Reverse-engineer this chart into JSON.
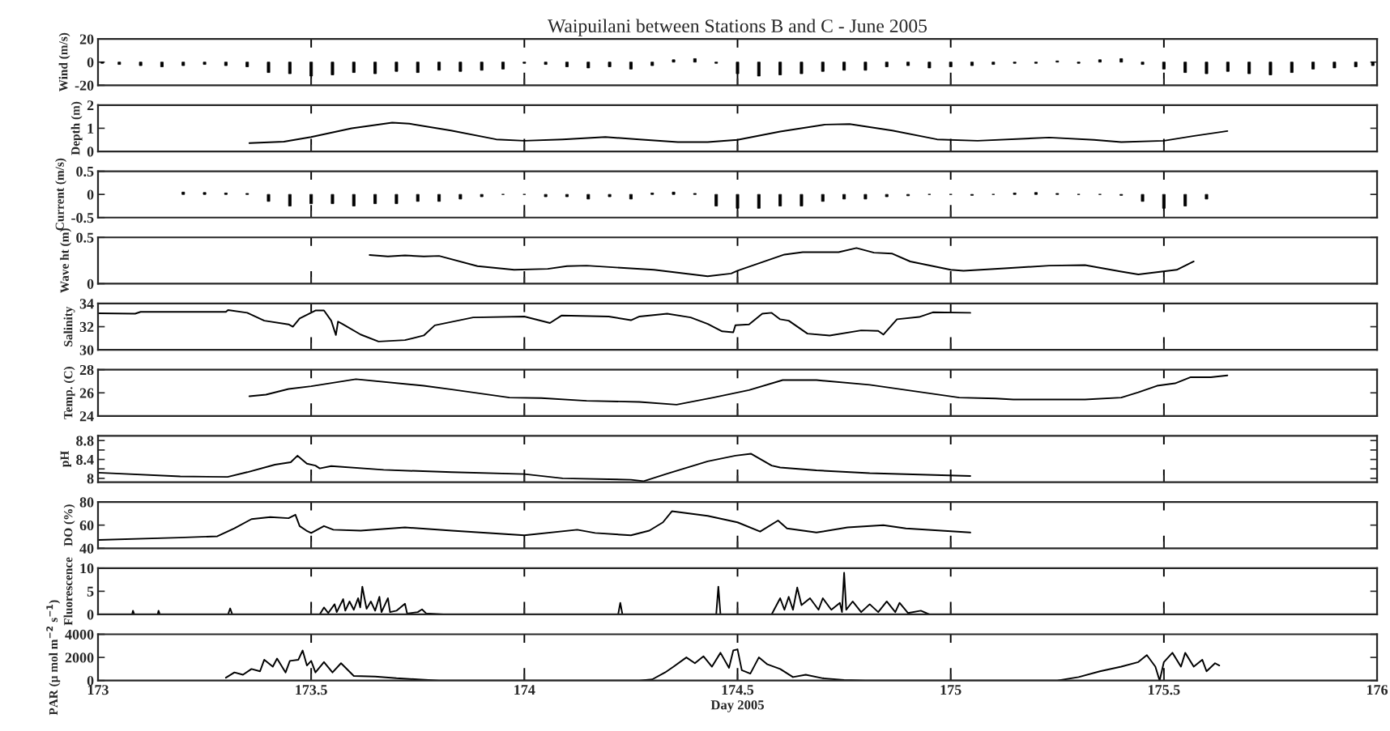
{
  "chart_data": [
    {
      "type": "bar",
      "title": "Waipuilani between Stations B and C - June 2005",
      "ylabel": "Wind (m/s)",
      "color": "#000000",
      "x": [
        173.01,
        173.05,
        173.1,
        173.15,
        173.2,
        173.25,
        173.3,
        173.35,
        173.4,
        173.45,
        173.5,
        173.55,
        173.6,
        173.65,
        173.7,
        173.75,
        173.8,
        173.85,
        173.9,
        173.95,
        174.0,
        174.05,
        174.1,
        174.15,
        174.2,
        174.25,
        174.3,
        174.35,
        174.4,
        174.45,
        174.5,
        174.55,
        174.6,
        174.65,
        174.7,
        174.75,
        174.8,
        174.85,
        174.9,
        174.95,
        175.0,
        175.05,
        175.1,
        175.15,
        175.2,
        175.25,
        175.3,
        175.35,
        175.4,
        175.45,
        175.5,
        175.55,
        175.6,
        175.65,
        175.7,
        175.75,
        175.8,
        175.85,
        175.9,
        175.95,
        175.99
      ],
      "values": [
        -1,
        -2,
        -3,
        -4,
        -3,
        -2,
        -3,
        -4,
        -9,
        -10,
        -12,
        -11,
        -9,
        -10,
        -8,
        -9,
        -7,
        -8,
        -7,
        -6,
        -1,
        -2,
        -4,
        -5,
        -4,
        -6,
        -3,
        2,
        3,
        -1,
        -10,
        -12,
        -11,
        -10,
        -8,
        -7,
        -7,
        -4,
        -3,
        -5,
        -4,
        -3,
        -2,
        -1,
        -1,
        1,
        -1,
        2,
        3,
        -2,
        -6,
        -9,
        -10,
        -8,
        -10,
        -11,
        -9,
        -6,
        -5,
        -4,
        -3
      ],
      "xlim": [
        173,
        176
      ],
      "xticks": [
        173,
        173.5,
        174,
        174.5,
        175,
        175.5,
        176
      ],
      "ylim": [
        -20,
        20
      ],
      "yticks": [
        -20,
        0,
        20
      ],
      "tick_labels": "y",
      "grid": "x"
    },
    {
      "type": "line",
      "ylabel": "Depth (m)",
      "color": "#000000",
      "x": [
        173.355,
        173.436,
        173.5,
        173.595,
        173.69,
        173.73,
        173.828,
        173.934,
        174.0,
        174.09,
        174.19,
        174.27,
        174.36,
        174.43,
        174.5,
        174.6,
        174.706,
        174.763,
        174.863,
        174.968,
        175.063,
        175.231,
        175.336,
        175.4,
        175.5,
        175.568,
        175.649
      ],
      "values": [
        0.36,
        0.42,
        0.62,
        1.0,
        1.24,
        1.2,
        0.9,
        0.52,
        0.46,
        0.52,
        0.62,
        0.52,
        0.4,
        0.4,
        0.5,
        0.86,
        1.16,
        1.18,
        0.9,
        0.52,
        0.46,
        0.6,
        0.5,
        0.4,
        0.46,
        0.66,
        0.88
      ],
      "xlim": [
        173,
        176
      ],
      "xticks": [
        173,
        173.5,
        174,
        174.5,
        175,
        175.5,
        176
      ],
      "ylim": [
        0,
        2
      ],
      "yticks": [
        0,
        1,
        2
      ],
      "tick_labels": "y",
      "grid": "x"
    },
    {
      "type": "bar",
      "ylabel": "Current (m/s)",
      "color": "#000000",
      "x": [
        173.2,
        173.25,
        173.3,
        173.35,
        173.4,
        173.45,
        173.5,
        173.55,
        173.6,
        173.65,
        173.7,
        173.75,
        173.8,
        173.85,
        173.9,
        173.95,
        174.0,
        174.05,
        174.1,
        174.15,
        174.2,
        174.25,
        174.3,
        174.35,
        174.4,
        174.45,
        174.5,
        174.55,
        174.6,
        174.65,
        174.7,
        174.75,
        174.8,
        174.85,
        174.9,
        174.95,
        175.0,
        175.05,
        175.1,
        175.15,
        175.2,
        175.25,
        175.3,
        175.35,
        175.4,
        175.45,
        175.5,
        175.55,
        175.6
      ],
      "values": [
        0.05,
        0.04,
        0.03,
        0.02,
        -0.15,
        -0.25,
        -0.2,
        -0.2,
        -0.25,
        -0.2,
        -0.2,
        -0.15,
        -0.15,
        -0.1,
        -0.05,
        0,
        0,
        -0.05,
        -0.05,
        -0.1,
        -0.05,
        -0.1,
        0.03,
        0.05,
        0.02,
        -0.25,
        -0.3,
        -0.3,
        -0.25,
        -0.25,
        -0.15,
        -0.1,
        -0.1,
        -0.05,
        -0.03,
        0,
        0,
        -0.02,
        0,
        0.03,
        0.04,
        0.02,
        0,
        0,
        -0.02,
        -0.15,
        -0.3,
        -0.25,
        -0.1
      ],
      "xlim": [
        173,
        176
      ],
      "xticks": [
        173,
        173.5,
        174,
        174.5,
        175,
        175.5,
        176
      ],
      "ylim": [
        -0.5,
        0.5
      ],
      "yticks": [
        -0.5,
        0,
        0.5
      ],
      "tick_labels": "y",
      "grid": "x"
    },
    {
      "type": "line",
      "ylabel": "Wave ht (m)",
      "color": "#000000",
      "x": [
        173.637,
        173.68,
        173.72,
        173.764,
        173.8,
        173.89,
        173.976,
        174.055,
        174.1,
        174.146,
        174.304,
        174.43,
        174.485,
        174.5,
        174.61,
        174.653,
        174.737,
        174.779,
        174.82,
        174.863,
        174.905,
        175.0,
        175.03,
        175.126,
        175.231,
        175.315,
        175.4,
        175.44,
        175.53,
        175.57
      ],
      "values": [
        0.31,
        0.295,
        0.305,
        0.295,
        0.3,
        0.19,
        0.15,
        0.16,
        0.19,
        0.195,
        0.15,
        0.08,
        0.11,
        0.14,
        0.315,
        0.34,
        0.34,
        0.385,
        0.335,
        0.325,
        0.24,
        0.15,
        0.14,
        0.165,
        0.195,
        0.2,
        0.13,
        0.1,
        0.15,
        0.24
      ],
      "xlim": [
        173,
        176
      ],
      "xticks": [
        173,
        173.5,
        174,
        174.5,
        175,
        175.5,
        176
      ],
      "ylim": [
        0,
        0.5
      ],
      "yticks": [
        0,
        0.5
      ],
      "tick_labels": "y",
      "grid": "x"
    },
    {
      "type": "line",
      "ylabel": "Salinity",
      "color": "#000000",
      "x": [
        173.0,
        173.087,
        173.1,
        173.3,
        173.305,
        173.35,
        173.39,
        173.447,
        173.457,
        173.473,
        173.51,
        173.53,
        173.547,
        173.558,
        173.563,
        173.573,
        173.616,
        173.658,
        173.72,
        173.764,
        173.79,
        173.88,
        174.0,
        174.06,
        174.087,
        174.198,
        174.25,
        174.27,
        174.335,
        174.39,
        174.43,
        174.464,
        174.49,
        174.495,
        174.527,
        174.558,
        174.58,
        174.6,
        174.62,
        174.664,
        174.716,
        174.79,
        174.83,
        174.842,
        174.874,
        174.926,
        174.958,
        175.046
      ],
      "values": [
        33.16,
        33.12,
        33.28,
        33.28,
        33.44,
        33.2,
        32.52,
        32.2,
        32.0,
        32.72,
        33.4,
        33.4,
        32.52,
        31.28,
        32.44,
        32.24,
        31.32,
        30.72,
        30.84,
        31.24,
        32.12,
        32.8,
        32.88,
        32.32,
        32.96,
        32.88,
        32.56,
        32.88,
        33.12,
        32.8,
        32.24,
        31.6,
        31.52,
        32.12,
        32.2,
        33.12,
        33.2,
        32.64,
        32.52,
        31.4,
        31.24,
        31.68,
        31.64,
        31.32,
        32.64,
        32.84,
        33.24,
        33.2
      ],
      "xlim": [
        173,
        176
      ],
      "xticks": [
        173,
        173.5,
        174,
        174.5,
        175,
        175.5,
        176
      ],
      "ylim": [
        30,
        34
      ],
      "yticks": [
        30,
        32,
        34
      ],
      "tick_labels": "y",
      "grid": "x"
    },
    {
      "type": "line",
      "ylabel": "Temp. (C)",
      "color": "#000000",
      "x": [
        173.355,
        173.394,
        173.447,
        173.5,
        173.605,
        173.764,
        173.83,
        173.965,
        174.04,
        174.146,
        174.27,
        174.357,
        174.443,
        174.527,
        174.606,
        174.685,
        174.81,
        175.02,
        175.105,
        175.147,
        175.315,
        175.4,
        175.44,
        175.484,
        175.526,
        175.563,
        175.61,
        175.649
      ],
      "values": [
        25.71,
        25.84,
        26.33,
        26.57,
        27.18,
        26.61,
        26.29,
        25.59,
        25.55,
        25.31,
        25.22,
        24.98,
        25.59,
        26.24,
        27.1,
        27.1,
        26.69,
        25.59,
        25.51,
        25.43,
        25.43,
        25.59,
        26.04,
        26.61,
        26.82,
        27.35,
        27.35,
        27.51
      ],
      "xlim": [
        173,
        176
      ],
      "xticks": [
        173,
        173.5,
        174,
        174.5,
        175,
        175.5,
        176
      ],
      "ylim": [
        24,
        28
      ],
      "yticks": [
        24,
        26,
        28
      ],
      "tick_labels": "y",
      "grid": "x"
    },
    {
      "type": "line",
      "ylabel": "pH",
      "color": "#000000",
      "x": [
        173.0,
        173.193,
        173.304,
        173.35,
        173.415,
        173.452,
        173.468,
        173.49,
        173.51,
        173.52,
        173.547,
        173.67,
        173.83,
        174.0,
        174.09,
        174.25,
        174.28,
        174.335,
        174.43,
        174.495,
        174.532,
        174.58,
        174.6,
        174.685,
        174.81,
        175.046
      ],
      "values": [
        8.12,
        8.04,
        8.03,
        8.13,
        8.29,
        8.34,
        8.48,
        8.31,
        8.27,
        8.21,
        8.26,
        8.18,
        8.13,
        8.09,
        8.0,
        7.97,
        7.94,
        8.1,
        8.36,
        8.48,
        8.52,
        8.27,
        8.23,
        8.17,
        8.11,
        8.05
      ],
      "xlim": [
        173,
        176
      ],
      "xticks": [
        173,
        173.5,
        174,
        174.5,
        175,
        175.5,
        176
      ],
      "ylim": [
        7.92,
        8.9
      ],
      "yticks": [
        8,
        {
          "value": 8.2,
          "label": null
        },
        8.4,
        {
          "value": 8.6,
          "label": null
        },
        8.8
      ],
      "tick_labels": "y",
      "grid": "x"
    },
    {
      "type": "line",
      "ylabel": "DO (%)",
      "color": "#000000",
      "x": [
        173.0,
        173.19,
        173.28,
        173.32,
        173.36,
        173.404,
        173.447,
        173.463,
        173.473,
        173.489,
        173.5,
        173.53,
        173.552,
        173.616,
        173.72,
        173.83,
        174.0,
        174.124,
        174.166,
        174.25,
        174.293,
        174.325,
        174.346,
        174.43,
        174.5,
        174.553,
        174.595,
        174.616,
        174.685,
        174.758,
        174.842,
        174.895,
        175.046
      ],
      "values": [
        47.2,
        49.2,
        50.4,
        57.2,
        65.2,
        67,
        66,
        69,
        59.2,
        55.2,
        53.2,
        59.2,
        56,
        55.2,
        58,
        55.2,
        51.2,
        56,
        53.2,
        51.2,
        55.2,
        62.4,
        72,
        68,
        62.4,
        54.4,
        64,
        57.2,
        53.6,
        58,
        60,
        57.2,
        53.6
      ],
      "xlim": [
        173,
        176
      ],
      "xticks": [
        173,
        173.5,
        174,
        174.5,
        175,
        175.5,
        176
      ],
      "ylim": [
        40,
        80
      ],
      "yticks": [
        40,
        60,
        80
      ],
      "tick_labels": "y",
      "grid": "x"
    },
    {
      "type": "line",
      "ylabel": "Fluorescence",
      "color": "#000000",
      "x": [
        173.08,
        173.082,
        173.085,
        173.14,
        173.142,
        173.145,
        173.305,
        173.31,
        173.315,
        173.52,
        173.53,
        173.54,
        173.555,
        173.56,
        173.575,
        173.58,
        173.59,
        173.6,
        173.61,
        173.615,
        173.62,
        173.625,
        173.63,
        173.64,
        173.65,
        173.66,
        173.665,
        173.68,
        173.685,
        173.7,
        173.72,
        173.725,
        173.75,
        173.76,
        173.77,
        173.81,
        174.0,
        174.22,
        174.225,
        174.23,
        174.45,
        174.455,
        174.46,
        174.58,
        174.6,
        174.61,
        174.62,
        174.63,
        174.64,
        174.65,
        174.67,
        174.69,
        174.7,
        174.72,
        174.74,
        174.745,
        174.75,
        174.755,
        174.77,
        174.79,
        174.81,
        174.83,
        174.85,
        174.87,
        174.88,
        174.9,
        174.93,
        174.95
      ],
      "values": [
        0,
        0.8,
        0,
        0,
        0.8,
        0,
        0,
        1.3,
        0,
        0,
        1.5,
        0.3,
        2.2,
        0.5,
        3.3,
        0.8,
        2.8,
        1.0,
        3.5,
        1.5,
        6.0,
        3.5,
        1.2,
        2.8,
        0.8,
        3.8,
        0.5,
        3.5,
        0.5,
        0.8,
        2.3,
        0.2,
        0.5,
        1.1,
        0.2,
        0,
        0,
        0,
        2.5,
        0,
        0,
        6.0,
        0,
        0,
        3.5,
        1.0,
        3.8,
        1.0,
        5.8,
        2.0,
        3.5,
        1.0,
        3.5,
        1.0,
        2.5,
        0.5,
        9.0,
        1.0,
        2.8,
        0.5,
        2.2,
        0.5,
        2.8,
        0.5,
        2.5,
        0.3,
        0.8,
        0
      ],
      "xlim": [
        173,
        176
      ],
      "xticks": [
        173,
        173.5,
        174,
        174.5,
        175,
        175.5,
        176
      ],
      "ylim": [
        0,
        10
      ],
      "yticks": [
        0,
        5,
        10
      ],
      "tick_labels": "y",
      "grid": "x"
    },
    {
      "type": "line",
      "ylabel": "PAR (µ mol m$^{−2}$ s$^{−1}$)",
      "xlabel": "Day 2005",
      "color": "#000000",
      "x": [
        173.3,
        173.32,
        173.34,
        173.36,
        173.38,
        173.39,
        173.41,
        173.42,
        173.44,
        173.45,
        173.47,
        173.48,
        173.49,
        173.5,
        173.51,
        173.53,
        173.55,
        173.57,
        173.6,
        173.65,
        173.7,
        173.75,
        173.8,
        174.27,
        174.3,
        174.33,
        174.35,
        174.38,
        174.4,
        174.42,
        174.44,
        174.46,
        174.48,
        174.49,
        174.5,
        174.51,
        174.53,
        174.55,
        174.57,
        174.6,
        174.63,
        174.66,
        174.7,
        174.75,
        174.8,
        175.25,
        175.3,
        175.35,
        175.4,
        175.44,
        175.46,
        175.48,
        175.49,
        175.5,
        175.52,
        175.54,
        175.55,
        175.57,
        175.59,
        175.6,
        175.62,
        175.63
      ],
      "values": [
        250,
        700,
        500,
        1000,
        800,
        1800,
        1200,
        1900,
        700,
        1700,
        1800,
        2600,
        1300,
        1700,
        700,
        1600,
        700,
        1500,
        400,
        350,
        200,
        100,
        0,
        0,
        100,
        700,
        1200,
        2000,
        1500,
        2100,
        1200,
        2400,
        1100,
        2600,
        2700,
        900,
        600,
        2000,
        1400,
        1000,
        300,
        500,
        200,
        50,
        0,
        0,
        300,
        800,
        1200,
        1600,
        2200,
        1200,
        0,
        1600,
        2400,
        1200,
        2400,
        1200,
        1800,
        800,
        1500,
        1300
      ],
      "xlim": [
        173,
        176
      ],
      "xticks": [
        173,
        173.5,
        174,
        174.5,
        175,
        175.5,
        176
      ],
      "ylim": [
        0,
        4000
      ],
      "yticks": [
        0,
        2000,
        4000
      ],
      "grid": "x"
    }
  ]
}
